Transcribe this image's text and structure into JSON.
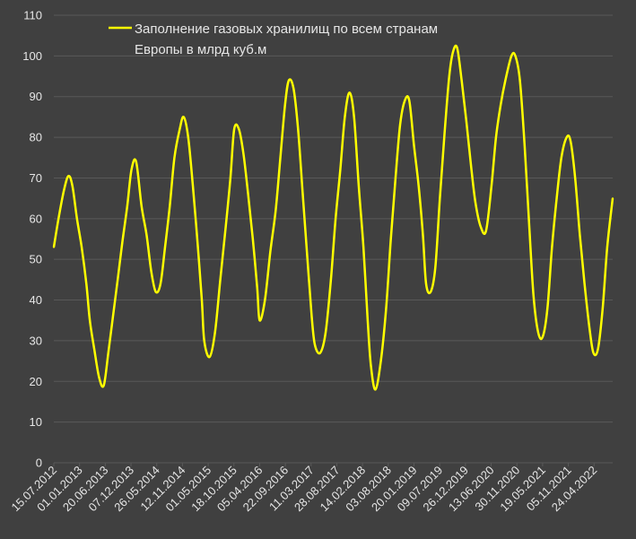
{
  "chart_data": {
    "type": "line",
    "title": "",
    "xlabel": "",
    "ylabel": "",
    "legend": {
      "position": "top-left",
      "lines": [
        "Заполнение газовых хранилищ по всем странам",
        "Европы в млрд куб.м"
      ]
    },
    "ylim": [
      0,
      110
    ],
    "yticks": [
      0,
      10,
      20,
      30,
      40,
      50,
      60,
      70,
      80,
      90,
      100,
      110
    ],
    "xlim": [
      "2012-07-15",
      "2022-08-25"
    ],
    "xticks": [
      "15.07.2012",
      "01.01.2013",
      "20.06.2013",
      "07.12.2013",
      "26.05.2014",
      "12.11.2014",
      "01.05.2015",
      "18.10.2015",
      "05.04.2016",
      "22.09.2016",
      "11.03.2017",
      "28.08.2017",
      "14.02.2018",
      "03.08.2018",
      "20.01.2019",
      "09.07.2019",
      "26.12.2019",
      "13.06.2020",
      "30.11.2020",
      "19.05.2021",
      "05.11.2021",
      "24.04.2022"
    ],
    "grid": true,
    "colors": {
      "background": "#404040",
      "grid": "#595959",
      "text": "#e6e6e6",
      "line": "#ffff00"
    },
    "series": [
      {
        "name": "Заполнение газовых хранилищ по всем странам Европы в млрд куб.м",
        "x": [
          "2012-07-15",
          "2012-08-15",
          "2012-09-20",
          "2012-10-20",
          "2012-11-15",
          "2012-12-15",
          "2013-01-15",
          "2013-02-15",
          "2013-03-10",
          "2013-04-08",
          "2013-05-10",
          "2013-06-10",
          "2013-07-10",
          "2013-08-10",
          "2013-09-10",
          "2013-10-10",
          "2013-11-12",
          "2013-12-10",
          "2014-01-10",
          "2014-02-15",
          "2014-03-20",
          "2014-04-20",
          "2014-05-20",
          "2014-06-20",
          "2014-07-20",
          "2014-08-20",
          "2014-09-20",
          "2014-10-25",
          "2014-11-20",
          "2014-12-20",
          "2015-01-20",
          "2015-02-20",
          "2015-03-20",
          "2015-04-05",
          "2015-05-10",
          "2015-06-15",
          "2015-07-20",
          "2015-08-25",
          "2015-09-25",
          "2015-10-20",
          "2015-11-20",
          "2015-12-20",
          "2016-01-20",
          "2016-02-20",
          "2016-03-20",
          "2016-04-05",
          "2016-05-10",
          "2016-06-15",
          "2016-07-20",
          "2016-08-20",
          "2016-09-20",
          "2016-10-15",
          "2016-11-15",
          "2016-12-15",
          "2017-01-15",
          "2017-02-15",
          "2017-03-15",
          "2017-04-05",
          "2017-05-10",
          "2017-06-15",
          "2017-07-20",
          "2017-08-20",
          "2017-09-20",
          "2017-10-20",
          "2017-11-20",
          "2017-12-20",
          "2018-01-20",
          "2018-02-20",
          "2018-03-20",
          "2018-04-10",
          "2018-05-10",
          "2018-06-15",
          "2018-07-20",
          "2018-08-20",
          "2018-09-20",
          "2018-10-20",
          "2018-11-20",
          "2018-12-20",
          "2019-01-20",
          "2019-02-20",
          "2019-03-20",
          "2019-04-10",
          "2019-05-10",
          "2019-06-10",
          "2019-07-10",
          "2019-08-10",
          "2019-09-10",
          "2019-10-05",
          "2019-11-01",
          "2019-12-01",
          "2020-01-01",
          "2020-02-01",
          "2020-03-01",
          "2020-04-05",
          "2020-05-10",
          "2020-06-15",
          "2020-07-15",
          "2020-08-15",
          "2020-09-15",
          "2020-10-25",
          "2020-11-20",
          "2020-12-20",
          "2021-01-20",
          "2021-02-20",
          "2021-03-20",
          "2021-04-20",
          "2021-05-20",
          "2021-06-20",
          "2021-07-20",
          "2021-08-20",
          "2021-09-20",
          "2021-10-25",
          "2021-11-20",
          "2021-12-20",
          "2022-01-20",
          "2022-02-20",
          "2022-03-25",
          "2022-04-20",
          "2022-05-20",
          "2022-06-20",
          "2022-07-20",
          "2022-08-25"
        ],
        "values": [
          53,
          60,
          67,
          70.5,
          68,
          60,
          53,
          44,
          35,
          28,
          21,
          19,
          27,
          36,
          45,
          54,
          63,
          72,
          74,
          63,
          56,
          47,
          42,
          44,
          53,
          63,
          75,
          82,
          85,
          80,
          68,
          54,
          40,
          30,
          26,
          32,
          45,
          58,
          70,
          82,
          82,
          76,
          66,
          55,
          43,
          35,
          40,
          52,
          62,
          75,
          88,
          94,
          92,
          82,
          66,
          50,
          36,
          29,
          27,
          32,
          45,
          60,
          72,
          85,
          91,
          85,
          68,
          53,
          35,
          24,
          18,
          25,
          38,
          55,
          70,
          83,
          89,
          89,
          78,
          68,
          56,
          44,
          42,
          48,
          65,
          81,
          95,
          101,
          102,
          94,
          84,
          73,
          64,
          58,
          57,
          68,
          80,
          88,
          94,
          100,
          100,
          94,
          78,
          58,
          41,
          32,
          31,
          38,
          53,
          65,
          75,
          80,
          79,
          70,
          56,
          44,
          33,
          27,
          28,
          38,
          53,
          65
        ]
      }
    ]
  }
}
